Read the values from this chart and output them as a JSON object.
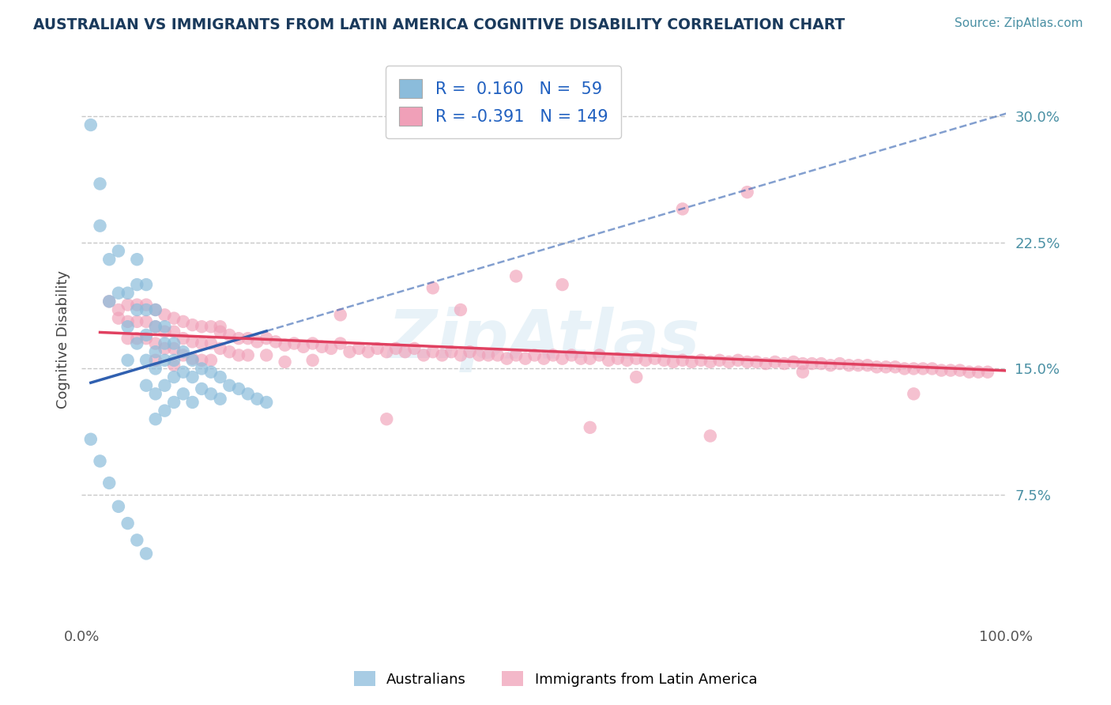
{
  "title": "AUSTRALIAN VS IMMIGRANTS FROM LATIN AMERICA COGNITIVE DISABILITY CORRELATION CHART",
  "source": "Source: ZipAtlas.com",
  "ylabel": "Cognitive Disability",
  "r_blue": 0.16,
  "n_blue": 59,
  "r_pink": -0.391,
  "n_pink": 149,
  "xlim": [
    0.0,
    1.0
  ],
  "ylim": [
    0.0,
    0.335
  ],
  "yticks": [
    0.075,
    0.15,
    0.225,
    0.3
  ],
  "ytick_labels": [
    "7.5%",
    "15.0%",
    "22.5%",
    "30.0%"
  ],
  "xtick_labels": [
    "0.0%",
    "100.0%"
  ],
  "title_color": "#1a3a5c",
  "source_color": "#4a90a4",
  "blue_dot_color": "#8bbcdb",
  "pink_dot_color": "#f0a0b8",
  "blue_line_color": "#3060b0",
  "pink_line_color": "#e04060",
  "legend_text_color": "#2060c0",
  "grid_color": "#c8c8c8",
  "watermark_color": "#cde4f0",
  "legend_label_blue": "Australians",
  "legend_label_pink": "Immigrants from Latin America",
  "blue_x": [
    0.01,
    0.02,
    0.02,
    0.03,
    0.03,
    0.04,
    0.04,
    0.05,
    0.05,
    0.05,
    0.06,
    0.06,
    0.06,
    0.06,
    0.07,
    0.07,
    0.07,
    0.07,
    0.07,
    0.08,
    0.08,
    0.08,
    0.08,
    0.08,
    0.08,
    0.09,
    0.09,
    0.09,
    0.09,
    0.09,
    0.1,
    0.1,
    0.1,
    0.1,
    0.11,
    0.11,
    0.11,
    0.12,
    0.12,
    0.12,
    0.13,
    0.13,
    0.14,
    0.14,
    0.15,
    0.15,
    0.16,
    0.17,
    0.18,
    0.19,
    0.2,
    0.01,
    0.02,
    0.03,
    0.04,
    0.05,
    0.06,
    0.07
  ],
  "blue_y": [
    0.295,
    0.26,
    0.235,
    0.215,
    0.19,
    0.22,
    0.195,
    0.195,
    0.175,
    0.155,
    0.215,
    0.2,
    0.185,
    0.165,
    0.2,
    0.185,
    0.17,
    0.155,
    0.14,
    0.185,
    0.175,
    0.16,
    0.15,
    0.135,
    0.12,
    0.175,
    0.165,
    0.155,
    0.14,
    0.125,
    0.165,
    0.155,
    0.145,
    0.13,
    0.16,
    0.148,
    0.135,
    0.155,
    0.145,
    0.13,
    0.15,
    0.138,
    0.148,
    0.135,
    0.145,
    0.132,
    0.14,
    0.138,
    0.135,
    0.132,
    0.13,
    0.108,
    0.095,
    0.082,
    0.068,
    0.058,
    0.048,
    0.04
  ],
  "pink_x": [
    0.03,
    0.04,
    0.04,
    0.05,
    0.05,
    0.05,
    0.06,
    0.06,
    0.06,
    0.07,
    0.07,
    0.07,
    0.08,
    0.08,
    0.08,
    0.08,
    0.09,
    0.09,
    0.09,
    0.1,
    0.1,
    0.1,
    0.1,
    0.11,
    0.11,
    0.11,
    0.12,
    0.12,
    0.12,
    0.13,
    0.13,
    0.13,
    0.14,
    0.14,
    0.14,
    0.15,
    0.15,
    0.16,
    0.16,
    0.17,
    0.17,
    0.18,
    0.18,
    0.19,
    0.2,
    0.2,
    0.21,
    0.22,
    0.22,
    0.23,
    0.24,
    0.25,
    0.25,
    0.26,
    0.27,
    0.28,
    0.29,
    0.3,
    0.31,
    0.32,
    0.33,
    0.34,
    0.35,
    0.36,
    0.37,
    0.38,
    0.39,
    0.4,
    0.41,
    0.42,
    0.43,
    0.44,
    0.45,
    0.46,
    0.47,
    0.48,
    0.49,
    0.5,
    0.51,
    0.52,
    0.53,
    0.54,
    0.55,
    0.56,
    0.57,
    0.58,
    0.59,
    0.6,
    0.61,
    0.62,
    0.63,
    0.64,
    0.65,
    0.66,
    0.67,
    0.68,
    0.69,
    0.7,
    0.71,
    0.72,
    0.73,
    0.74,
    0.75,
    0.76,
    0.77,
    0.78,
    0.79,
    0.8,
    0.81,
    0.82,
    0.83,
    0.84,
    0.85,
    0.86,
    0.87,
    0.88,
    0.89,
    0.9,
    0.91,
    0.92,
    0.93,
    0.94,
    0.95,
    0.96,
    0.97,
    0.98,
    0.52,
    0.65,
    0.47,
    0.72,
    0.38,
    0.15,
    0.28,
    0.41,
    0.6,
    0.78,
    0.9,
    0.33,
    0.55,
    0.68
  ],
  "pink_y": [
    0.19,
    0.185,
    0.18,
    0.188,
    0.178,
    0.168,
    0.188,
    0.178,
    0.168,
    0.188,
    0.178,
    0.168,
    0.185,
    0.175,
    0.165,
    0.155,
    0.182,
    0.172,
    0.162,
    0.18,
    0.172,
    0.162,
    0.152,
    0.178,
    0.168,
    0.158,
    0.176,
    0.166,
    0.156,
    0.175,
    0.165,
    0.155,
    0.175,
    0.165,
    0.155,
    0.172,
    0.162,
    0.17,
    0.16,
    0.168,
    0.158,
    0.168,
    0.158,
    0.166,
    0.168,
    0.158,
    0.166,
    0.164,
    0.154,
    0.165,
    0.163,
    0.165,
    0.155,
    0.163,
    0.162,
    0.165,
    0.16,
    0.162,
    0.16,
    0.162,
    0.16,
    0.162,
    0.16,
    0.162,
    0.158,
    0.16,
    0.158,
    0.16,
    0.158,
    0.16,
    0.158,
    0.158,
    0.158,
    0.156,
    0.158,
    0.156,
    0.158,
    0.156,
    0.158,
    0.156,
    0.158,
    0.156,
    0.156,
    0.158,
    0.155,
    0.156,
    0.155,
    0.156,
    0.155,
    0.156,
    0.155,
    0.154,
    0.155,
    0.154,
    0.155,
    0.154,
    0.155,
    0.154,
    0.155,
    0.154,
    0.154,
    0.153,
    0.154,
    0.153,
    0.154,
    0.153,
    0.153,
    0.153,
    0.152,
    0.153,
    0.152,
    0.152,
    0.152,
    0.151,
    0.151,
    0.151,
    0.15,
    0.15,
    0.15,
    0.15,
    0.149,
    0.149,
    0.149,
    0.148,
    0.148,
    0.148,
    0.2,
    0.245,
    0.205,
    0.255,
    0.198,
    0.175,
    0.182,
    0.185,
    0.145,
    0.148,
    0.135,
    0.12,
    0.115,
    0.11
  ]
}
